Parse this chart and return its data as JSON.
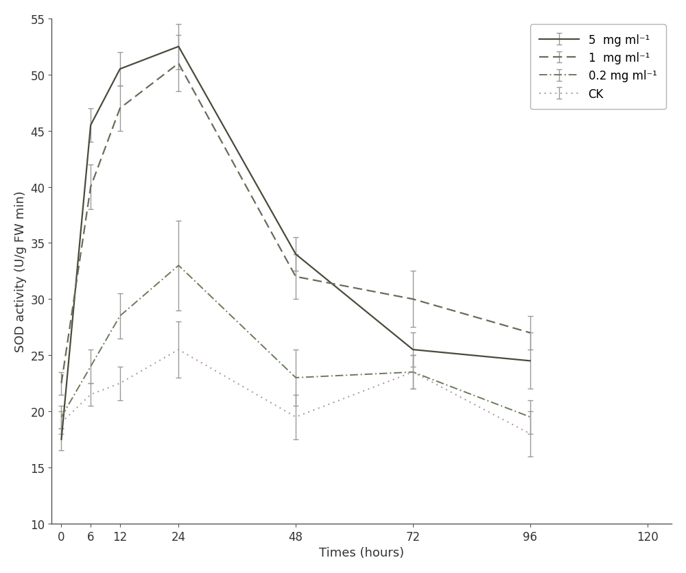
{
  "x": [
    0,
    6,
    12,
    24,
    48,
    72,
    96
  ],
  "series": [
    {
      "label": "5  mg ml⁻¹",
      "y": [
        17.5,
        45.5,
        50.5,
        52.5,
        34.0,
        25.5,
        24.5
      ],
      "yerr": [
        1.0,
        1.5,
        1.5,
        2.0,
        1.5,
        1.5,
        2.5
      ],
      "color": "#4a4a3a",
      "linestyle": "solid",
      "linewidth": 1.6,
      "dashes": null
    },
    {
      "label": "1  mg ml⁻¹",
      "y": [
        22.5,
        40.0,
        47.0,
        51.0,
        32.0,
        30.0,
        27.0
      ],
      "yerr": [
        1.0,
        2.0,
        2.0,
        2.5,
        2.0,
        2.5,
        1.5
      ],
      "color": "#6a6a5a",
      "linestyle": "dashed",
      "linewidth": 1.6,
      "dashes": [
        6,
        3
      ]
    },
    {
      "label": "0.2 mg ml⁻¹",
      "y": [
        19.5,
        24.0,
        28.5,
        33.0,
        23.0,
        23.5,
        19.5
      ],
      "yerr": [
        1.0,
        1.5,
        2.0,
        4.0,
        2.5,
        1.5,
        1.5
      ],
      "color": "#6a7a5a",
      "linestyle": "dashdot",
      "linewidth": 1.4,
      "dashes": [
        6,
        2,
        1,
        2
      ]
    },
    {
      "label": "CK",
      "y": [
        19.0,
        21.5,
        22.5,
        25.5,
        19.5,
        23.5,
        18.0
      ],
      "yerr": [
        1.0,
        1.0,
        1.5,
        2.5,
        2.0,
        1.5,
        2.0
      ],
      "color": "#b09090",
      "linestyle": "dotted",
      "linewidth": 1.4,
      "dashes": [
        1,
        3
      ]
    }
  ],
  "xlim": [
    -2,
    125
  ],
  "ylim": [
    10,
    55
  ],
  "xticks": [
    0,
    6,
    12,
    24,
    48,
    72,
    96,
    120
  ],
  "yticks": [
    10,
    15,
    20,
    25,
    30,
    35,
    40,
    45,
    50,
    55
  ],
  "xlabel": "Times (hours)",
  "ylabel": "SOD activity (U/g FW min)",
  "legend_loc": "upper right",
  "capsize": 3,
  "elinewidth": 1.0,
  "error_color": "#999999",
  "capthick": 1.0,
  "background_color": "#ffffff"
}
